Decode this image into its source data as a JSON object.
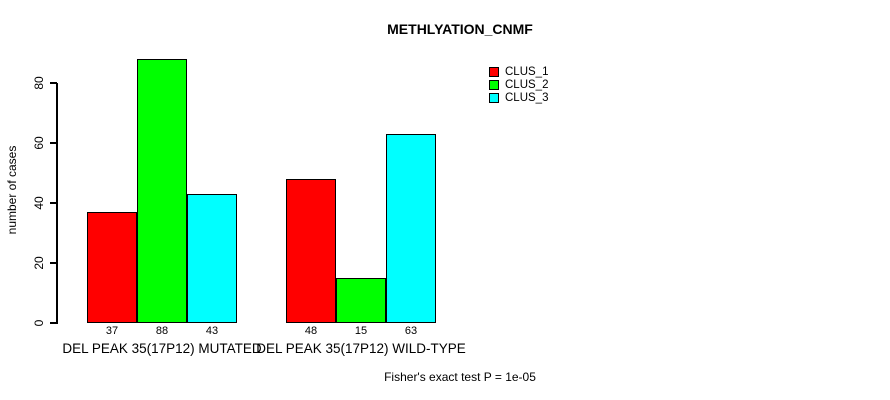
{
  "title": "METHLYATION_CNMF",
  "y_axis": {
    "label": "number of cases",
    "ticks": [
      0,
      20,
      40,
      60,
      80
    ]
  },
  "footer": "Fisher's exact test P = 1e-05",
  "chart_data": {
    "type": "bar",
    "title": "METHLYATION_CNMF",
    "xlabel": "",
    "ylabel": "number of cases",
    "categories": [
      "DEL PEAK 35(17P12) MUTATED",
      "DEL PEAK 35(17P12) WILD-TYPE"
    ],
    "series": [
      {
        "name": "CLUS_1",
        "color": "#ff0000",
        "values": [
          37,
          48
        ]
      },
      {
        "name": "CLUS_2",
        "color": "#00ff00",
        "values": [
          88,
          15
        ]
      },
      {
        "name": "CLUS_3",
        "color": "#00ffff",
        "values": [
          43,
          63
        ]
      }
    ],
    "bar_value_labels": [
      [
        37,
        88,
        43
      ],
      [
        48,
        15,
        63
      ]
    ],
    "yticks": [
      0,
      20,
      40,
      60,
      80
    ],
    "ylim": [
      0,
      88
    ],
    "grid": false,
    "legend_position": "top-right",
    "annotation": "Fisher's exact test P = 1e-05"
  },
  "legend": {
    "items": [
      {
        "label": "CLUS_1",
        "color": "#ff0000"
      },
      {
        "label": "CLUS_2",
        "color": "#00ff00"
      },
      {
        "label": "CLUS_3",
        "color": "#00ffff"
      }
    ]
  }
}
